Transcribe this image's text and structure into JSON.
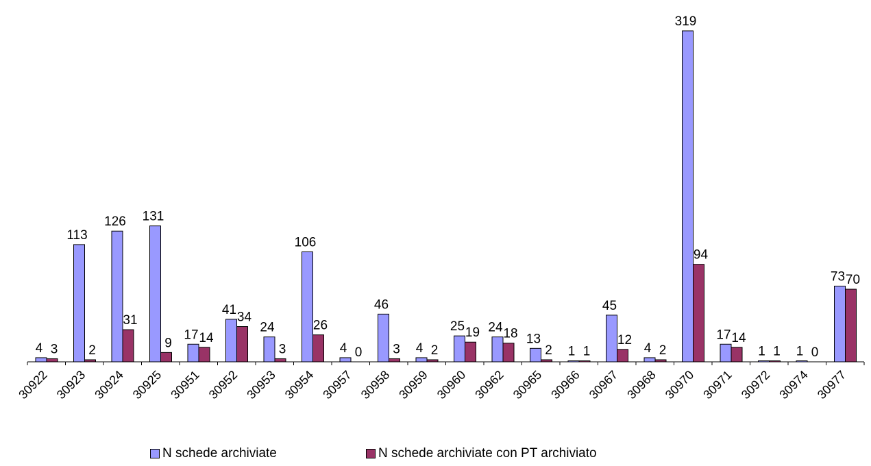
{
  "chart_data": {
    "type": "bar",
    "categories": [
      "30922",
      "30923",
      "30924",
      "30925",
      "30951",
      "30952",
      "30953",
      "30954",
      "30957",
      "30958",
      "30959",
      "30960",
      "30962",
      "30965",
      "30966",
      "30967",
      "30968",
      "30970",
      "30971",
      "30972",
      "30974",
      "30977"
    ],
    "series": [
      {
        "name": "N schede archiviate",
        "color": "#9999ff",
        "values": [
          4,
          113,
          126,
          131,
          17,
          41,
          24,
          106,
          4,
          46,
          4,
          25,
          24,
          13,
          1,
          45,
          4,
          319,
          17,
          1,
          1,
          73
        ]
      },
      {
        "name": "N schede archiviate con PT archiviato",
        "color": "#993366",
        "values": [
          3,
          2,
          31,
          9,
          14,
          34,
          3,
          26,
          0,
          3,
          2,
          19,
          18,
          2,
          1,
          12,
          2,
          94,
          14,
          1,
          0,
          70
        ]
      }
    ],
    "ylim": [
      0,
      319
    ],
    "legend_position": "bottom",
    "grid": false,
    "data_labels": true
  }
}
